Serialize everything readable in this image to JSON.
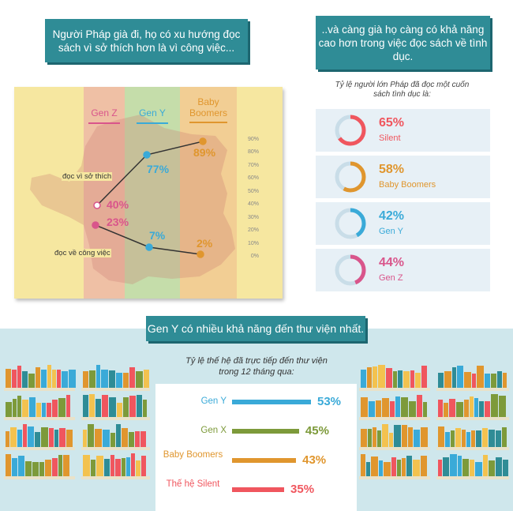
{
  "top_left_banner": "Người Pháp già đi, họ có xu hướng đọc sách vì sở thích hơn là vì công việc...",
  "top_right_banner": "..và càng già họ càng có khả năng cao hơn trong việc đọc sách về tình dục.",
  "map_chart": {
    "columns": [
      {
        "label": "Gen Z",
        "color": "#d9558b"
      },
      {
        "label": "Gen Y",
        "color": "#3aaad8"
      },
      {
        "label": "Baby Boomers",
        "color": "#e0962e"
      }
    ],
    "y_ticks": [
      "90%",
      "80%",
      "70%",
      "60%",
      "50%",
      "40%",
      "30%",
      "20%",
      "10%",
      "0%"
    ],
    "ylim": [
      0,
      90
    ],
    "series": [
      {
        "name": "đọc vì sở thích",
        "values": [
          40,
          77,
          89
        ],
        "labels": [
          "40%",
          "77%",
          "89%"
        ]
      },
      {
        "name": "đọc về công việc",
        "values": [
          23,
          7,
          2
        ],
        "labels": [
          "23%",
          "7%",
          "2%"
        ]
      }
    ]
  },
  "sex_books": {
    "subtitle": "Tỷ lệ người lớn Pháp đã đọc một cuốn sách tình dục là:",
    "track_color": "#c9dde8",
    "items": [
      {
        "pct": "65%",
        "value": 65,
        "label": "Silent",
        "color": "#f0565e"
      },
      {
        "pct": "58%",
        "value": 58,
        "label": "Baby Boomers",
        "color": "#e0962e"
      },
      {
        "pct": "42%",
        "value": 42,
        "label": "Gen Y",
        "color": "#3aaad8"
      },
      {
        "pct": "44%",
        "value": 44,
        "label": "Gen Z",
        "color": "#d9558b"
      }
    ]
  },
  "library_banner": "Gen Y có nhiều khả năng đến thư viện nhất.",
  "library_chart": {
    "type": "bar",
    "subtitle": "Tỷ lệ thế hệ đã trực tiếp đến thư viện trong 12 tháng qua:",
    "categories": [
      "Gen Y",
      "Gen X",
      "Baby Boomers",
      "Thế hệ Silent"
    ],
    "values": [
      53,
      45,
      43,
      35
    ],
    "labels": [
      "53%",
      "45%",
      "43%",
      "35%"
    ],
    "colors": [
      "#3aaad8",
      "#7d9a3a",
      "#e0962e",
      "#f0565e"
    ]
  }
}
